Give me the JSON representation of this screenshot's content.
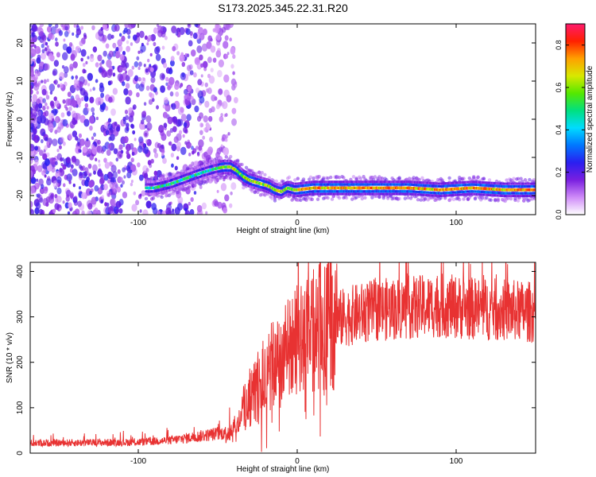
{
  "title": "S173.2025.345.22.31.R20",
  "chart_data": [
    {
      "type": "heatmap",
      "xlabel": "Height of straight line (km)",
      "ylabel": "Frequency (Hz)",
      "xlim": [
        -168,
        150
      ],
      "ylim": [
        -25,
        25
      ],
      "xticks": [
        -100,
        0,
        100
      ],
      "xtick_labels": [
        "-100",
        "0",
        "100"
      ],
      "yticks": [
        20,
        10,
        0,
        -10,
        -20
      ],
      "ytick_labels": [
        "20",
        "10",
        "0",
        "-10",
        "-20"
      ],
      "colorbar": {
        "label": "Normalized spectral amplitude",
        "range": [
          0,
          0.9
        ],
        "ticks": [
          0,
          0.2,
          0.4,
          0.6,
          0.8
        ],
        "tick_labels": [
          "0.0",
          "0.2",
          "0.4",
          "0.6",
          "0.8"
        ],
        "colors": [
          "#ffffff",
          "#cf8bf8",
          "#7a1fe0",
          "#2a1ff0",
          "#0077ff",
          "#00dcff",
          "#00e080",
          "#55e800",
          "#d8e800",
          "#ffa000",
          "#ff2000",
          "#ff1a6e"
        ]
      },
      "ridge_line": {
        "x": [
          -90,
          -80,
          -70,
          -60,
          -52,
          -46,
          -42,
          -38,
          -34,
          -30,
          -26,
          -22,
          -18,
          -14,
          -10,
          -6,
          -2,
          0,
          10,
          30,
          50,
          70,
          90,
          110,
          130,
          150
        ],
        "y": [
          -18,
          -17,
          -15.5,
          -14,
          -13,
          -12.5,
          -12.5,
          -13.5,
          -15,
          -16,
          -16.5,
          -17,
          -17.5,
          -18.5,
          -19,
          -18,
          -18.5,
          -18.5,
          -18,
          -18,
          -18,
          -18,
          -18.5,
          -18,
          -18.5,
          -18.5
        ]
      }
    },
    {
      "type": "line",
      "xlabel": "Height of straight line (km)",
      "ylabel": "SNR (10 * v/v)",
      "xlim": [
        -168,
        150
      ],
      "ylim": [
        0,
        420
      ],
      "xticks": [
        -100,
        0,
        100
      ],
      "xtick_labels": [
        "-100",
        "0",
        "100"
      ],
      "yticks": [
        0,
        100,
        200,
        300,
        400
      ],
      "ytick_labels": [
        "0",
        "100",
        "200",
        "300",
        "400"
      ],
      "color": "#e83232",
      "envelope": {
        "x": [
          -168,
          -100,
          -80,
          -60,
          -45,
          -38,
          -35,
          -30,
          -20,
          -10,
          0,
          10,
          20,
          30,
          50,
          70,
          90,
          110,
          130,
          150
        ],
        "y": [
          22,
          24,
          28,
          38,
          45,
          55,
          90,
          120,
          170,
          210,
          235,
          265,
          285,
          300,
          315,
          320,
          325,
          318,
          315,
          310
        ]
      }
    }
  ]
}
